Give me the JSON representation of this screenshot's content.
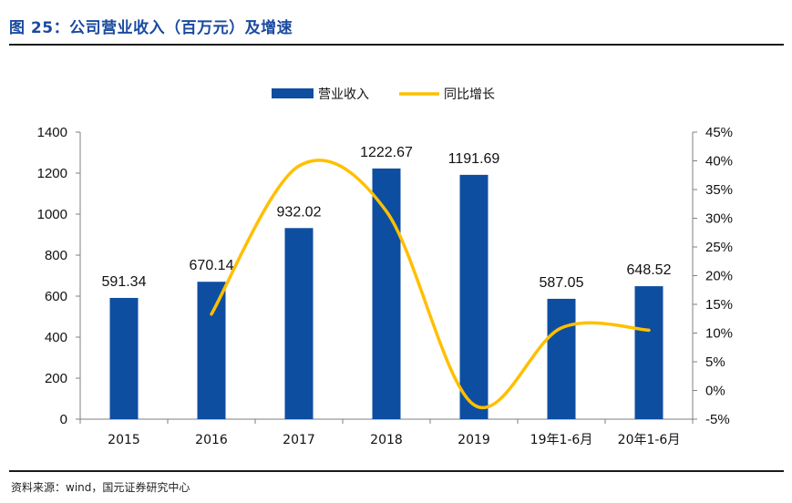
{
  "title": "图 25：公司营业收入（百万元）及增速",
  "source": "资料来源：wind，国元证券研究中心",
  "chart_data": {
    "type": "bar+line",
    "categories": [
      "2015",
      "2016",
      "2017",
      "2018",
      "2019",
      "19年1-6月",
      "20年1-6月"
    ],
    "series": [
      {
        "name": "营业收入",
        "type": "bar",
        "axis": "left",
        "color": "#0e4ea1",
        "values": [
          591.34,
          670.14,
          932.02,
          1222.67,
          1191.69,
          587.05,
          648.52
        ],
        "labels": [
          "591.34",
          "670.14",
          "932.02",
          "1222.67",
          "1191.69",
          "587.05",
          "648.52"
        ]
      },
      {
        "name": "同比增长",
        "type": "line",
        "axis": "right",
        "color": "#ffbf00",
        "smooth": true,
        "values": [
          null,
          13.3,
          39.1,
          31.2,
          -2.5,
          10.9,
          10.5
        ]
      }
    ],
    "y_left": {
      "min": 0,
      "max": 1400,
      "ticks": [
        0,
        200,
        400,
        600,
        800,
        1000,
        1200,
        1400
      ],
      "tick_labels": [
        "0",
        "200",
        "400",
        "600",
        "800",
        "1000",
        "1200",
        "1400"
      ]
    },
    "y_right": {
      "min": -5,
      "max": 45,
      "ticks": [
        -5,
        0,
        5,
        10,
        15,
        20,
        25,
        30,
        35,
        40,
        45
      ],
      "tick_labels": [
        "-5%",
        "0%",
        "5%",
        "10%",
        "15%",
        "20%",
        "25%",
        "30%",
        "35%",
        "40%",
        "45%"
      ]
    },
    "grid": false,
    "legend": "top"
  }
}
